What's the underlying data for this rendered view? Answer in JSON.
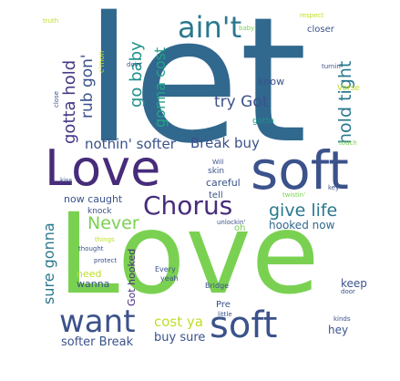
{
  "words": [
    {
      "text": "let",
      "color": "#31688e"
    },
    {
      "text": "Love",
      "color": "#7ad151"
    },
    {
      "text": "soft",
      "color": "#3b528b"
    },
    {
      "text": "Love",
      "color": "#472c7a"
    },
    {
      "text": "soft",
      "color": "#3b528b"
    },
    {
      "text": "Chorus",
      "color": "#472c7a"
    },
    {
      "text": "want",
      "color": "#3b528b"
    },
    {
      "text": "ain't",
      "color": "#2a788e"
    },
    {
      "text": "give life",
      "color": "#2a788e"
    },
    {
      "text": "Never",
      "color": "#7ad151"
    },
    {
      "text": "hold tight",
      "color": "#2a788e"
    },
    {
      "text": "go baby",
      "color": "#21918c"
    },
    {
      "text": "gotta hold",
      "color": "#443983"
    },
    {
      "text": "rub gon'",
      "color": "#3b528b"
    },
    {
      "text": "gonna cost",
      "color": "#20a486"
    },
    {
      "text": "try Got",
      "color": "#3b528b"
    },
    {
      "text": "nothin' softer",
      "color": "#3b528b"
    },
    {
      "text": "Break buy",
      "color": "#3b528b"
    },
    {
      "text": "sure gonna",
      "color": "#2a788e"
    },
    {
      "text": "cost ya",
      "color": "#bddf26"
    },
    {
      "text": "buy sure",
      "color": "#3b528b"
    },
    {
      "text": "softer Break",
      "color": "#3b528b"
    },
    {
      "text": "hooked now",
      "color": "#31688e"
    },
    {
      "text": "Got hooked",
      "color": "#472c7a"
    },
    {
      "text": "now caught",
      "color": "#3b528b"
    },
    {
      "text": "careful",
      "color": "#3b528b"
    },
    {
      "text": "skin",
      "color": "#3b528b"
    },
    {
      "text": "tell",
      "color": "#3b528b"
    },
    {
      "text": "keep",
      "color": "#3b528b"
    },
    {
      "text": "hey",
      "color": "#3b528b"
    },
    {
      "text": "need",
      "color": "#bddf26"
    },
    {
      "text": "wanna",
      "color": "#3b528b"
    },
    {
      "text": "knock",
      "color": "#3b528b"
    },
    {
      "text": "oh",
      "color": "#7ad151"
    },
    {
      "text": "Pre",
      "color": "#3b528b"
    },
    {
      "text": "know",
      "color": "#3b528b"
    },
    {
      "text": "gotta",
      "color": "#21918c"
    },
    {
      "text": "Verse",
      "color": "#bddf26"
    },
    {
      "text": "closer",
      "color": "#3b528b"
    },
    {
      "text": "c'mon",
      "color": "#bddf26"
    },
    {
      "text": "Every",
      "color": "#3b528b"
    },
    {
      "text": "yeah",
      "color": "#3b528b"
    },
    {
      "text": "Bridge",
      "color": "#3b528b"
    },
    {
      "text": "little",
      "color": "#3b528b"
    },
    {
      "text": "respect",
      "color": "#bddf26"
    },
    {
      "text": "baby",
      "color": "#7ad151"
    },
    {
      "text": "truth",
      "color": "#bddf26"
    },
    {
      "text": "doin'",
      "color": "#3b528b"
    },
    {
      "text": "turnin'",
      "color": "#3b528b"
    },
    {
      "text": "close",
      "color": "#3b528b"
    },
    {
      "text": "touch",
      "color": "#7ad151"
    },
    {
      "text": "Will",
      "color": "#3b528b"
    },
    {
      "text": "kiss",
      "color": "#3b528b"
    },
    {
      "text": "twistin'",
      "color": "#7ad151"
    },
    {
      "text": "key",
      "color": "#3b528b"
    },
    {
      "text": "unlockin'",
      "color": "#3b528b"
    },
    {
      "text": "things",
      "color": "#bddf26"
    },
    {
      "text": "thought",
      "color": "#3b528b"
    },
    {
      "text": "protect",
      "color": "#3b528b"
    },
    {
      "text": "door",
      "color": "#3b528b"
    },
    {
      "text": "kinds",
      "color": "#3b528b"
    }
  ]
}
